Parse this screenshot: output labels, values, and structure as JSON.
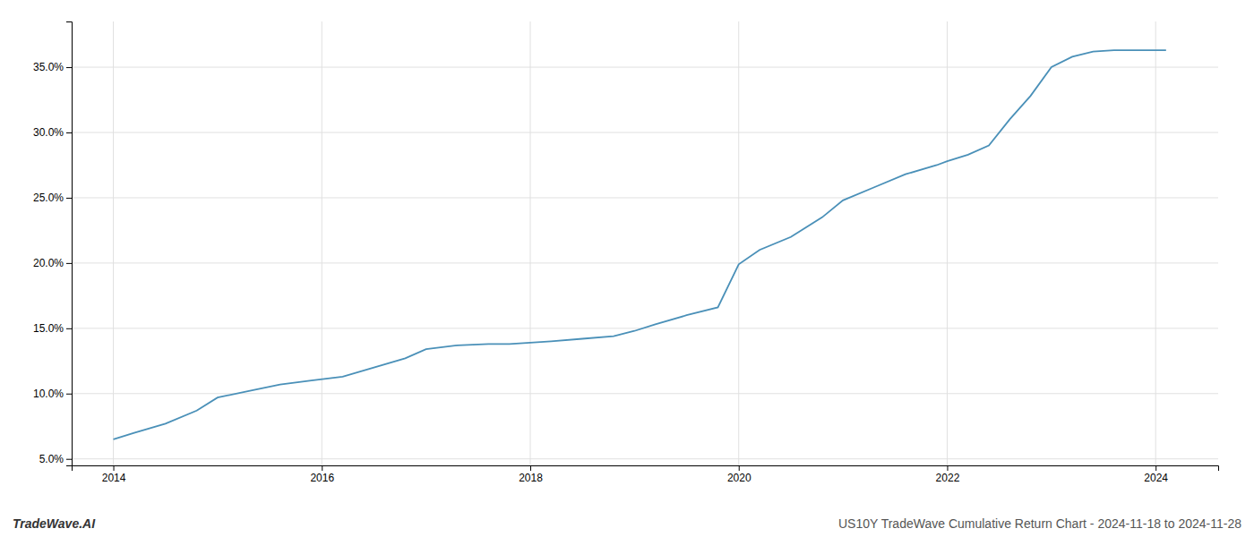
{
  "chart_data": {
    "type": "line",
    "title": "US10Y TradeWave Cumulative Return Chart - 2024-11-18 to 2024-11-28",
    "annotations": [
      "TradeWave.AI"
    ],
    "x": [
      2014.0,
      2014.2,
      2014.5,
      2014.8,
      2015.0,
      2015.3,
      2015.6,
      2015.9,
      2016.2,
      2016.5,
      2016.8,
      2017.0,
      2017.3,
      2017.6,
      2017.8,
      2018.0,
      2018.2,
      2018.5,
      2018.8,
      2019.0,
      2019.2,
      2019.5,
      2019.8,
      2020.0,
      2020.2,
      2020.5,
      2020.8,
      2021.0,
      2021.3,
      2021.6,
      2021.9,
      2022.0,
      2022.2,
      2022.4,
      2022.6,
      2022.8,
      2023.0,
      2023.2,
      2023.4,
      2023.6,
      2023.8,
      2024.0,
      2024.1
    ],
    "values": [
      0.065,
      0.07,
      0.077,
      0.087,
      0.097,
      0.102,
      0.107,
      0.11,
      0.113,
      0.12,
      0.127,
      0.134,
      0.137,
      0.138,
      0.138,
      0.139,
      0.14,
      0.142,
      0.144,
      0.148,
      0.153,
      0.16,
      0.166,
      0.199,
      0.21,
      0.22,
      0.235,
      0.248,
      0.258,
      0.268,
      0.275,
      0.278,
      0.283,
      0.29,
      0.31,
      0.328,
      0.35,
      0.358,
      0.362,
      0.363,
      0.363,
      0.363,
      0.363
    ],
    "color": "#4a90b8",
    "xlim": [
      2013.6,
      2024.6
    ],
    "ylim": [
      0.045,
      0.385
    ],
    "xticks": [
      2014,
      2016,
      2018,
      2020,
      2022,
      2024
    ],
    "yticks": [
      {
        "value": 0.05,
        "label": "5.0%"
      },
      {
        "value": 0.1,
        "label": "10.0%"
      },
      {
        "value": 0.15,
        "label": "15.0%"
      },
      {
        "value": 0.2,
        "label": "20.0%"
      },
      {
        "value": 0.25,
        "label": "25.0%"
      },
      {
        "value": 0.3,
        "label": "30.0%"
      },
      {
        "value": 0.35,
        "label": "35.0%"
      }
    ],
    "grid": true
  }
}
